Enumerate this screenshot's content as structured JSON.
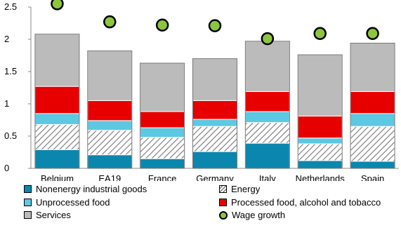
{
  "chart_data": {
    "type": "bar",
    "stacked": true,
    "categories": [
      "Belgium",
      "EA19",
      "France",
      "Germany",
      "Italy",
      "Netherlands",
      "Spain"
    ],
    "ylim": [
      0,
      2.5
    ],
    "yticks": [
      "0",
      "0.5",
      "1",
      "1.5",
      "2",
      "2.5"
    ],
    "grid": false,
    "legend_position": "bottom",
    "series": [
      {
        "name": "Nonenergy industrial goods",
        "kind": "bar",
        "color": "#0B87AE",
        "values": [
          0.29,
          0.21,
          0.15,
          0.26,
          0.39,
          0.12,
          0.11
        ]
      },
      {
        "name": "Energy",
        "kind": "bar",
        "color": "#FFFFFF",
        "pattern": "diagonal-hatch",
        "values": [
          0.39,
          0.38,
          0.33,
          0.39,
          0.32,
          0.26,
          0.54
        ]
      },
      {
        "name": "Unprocessed food",
        "kind": "bar",
        "color": "#5DC8E2",
        "values": [
          0.17,
          0.15,
          0.15,
          0.11,
          0.17,
          0.09,
          0.2
        ]
      },
      {
        "name": "Processed food, alcohol and tobacco",
        "kind": "bar",
        "color": "#E60000",
        "values": [
          0.42,
          0.31,
          0.25,
          0.29,
          0.31,
          0.34,
          0.34
        ]
      },
      {
        "name": "Services",
        "kind": "bar",
        "color": "#BBBBBB",
        "values": [
          0.81,
          0.77,
          0.75,
          0.65,
          0.78,
          0.95,
          0.75
        ]
      },
      {
        "name": "Wage growth",
        "kind": "marker",
        "color": "#8CC63F",
        "values": [
          2.55,
          2.27,
          2.22,
          2.21,
          2.01,
          2.09,
          2.09
        ]
      }
    ]
  }
}
